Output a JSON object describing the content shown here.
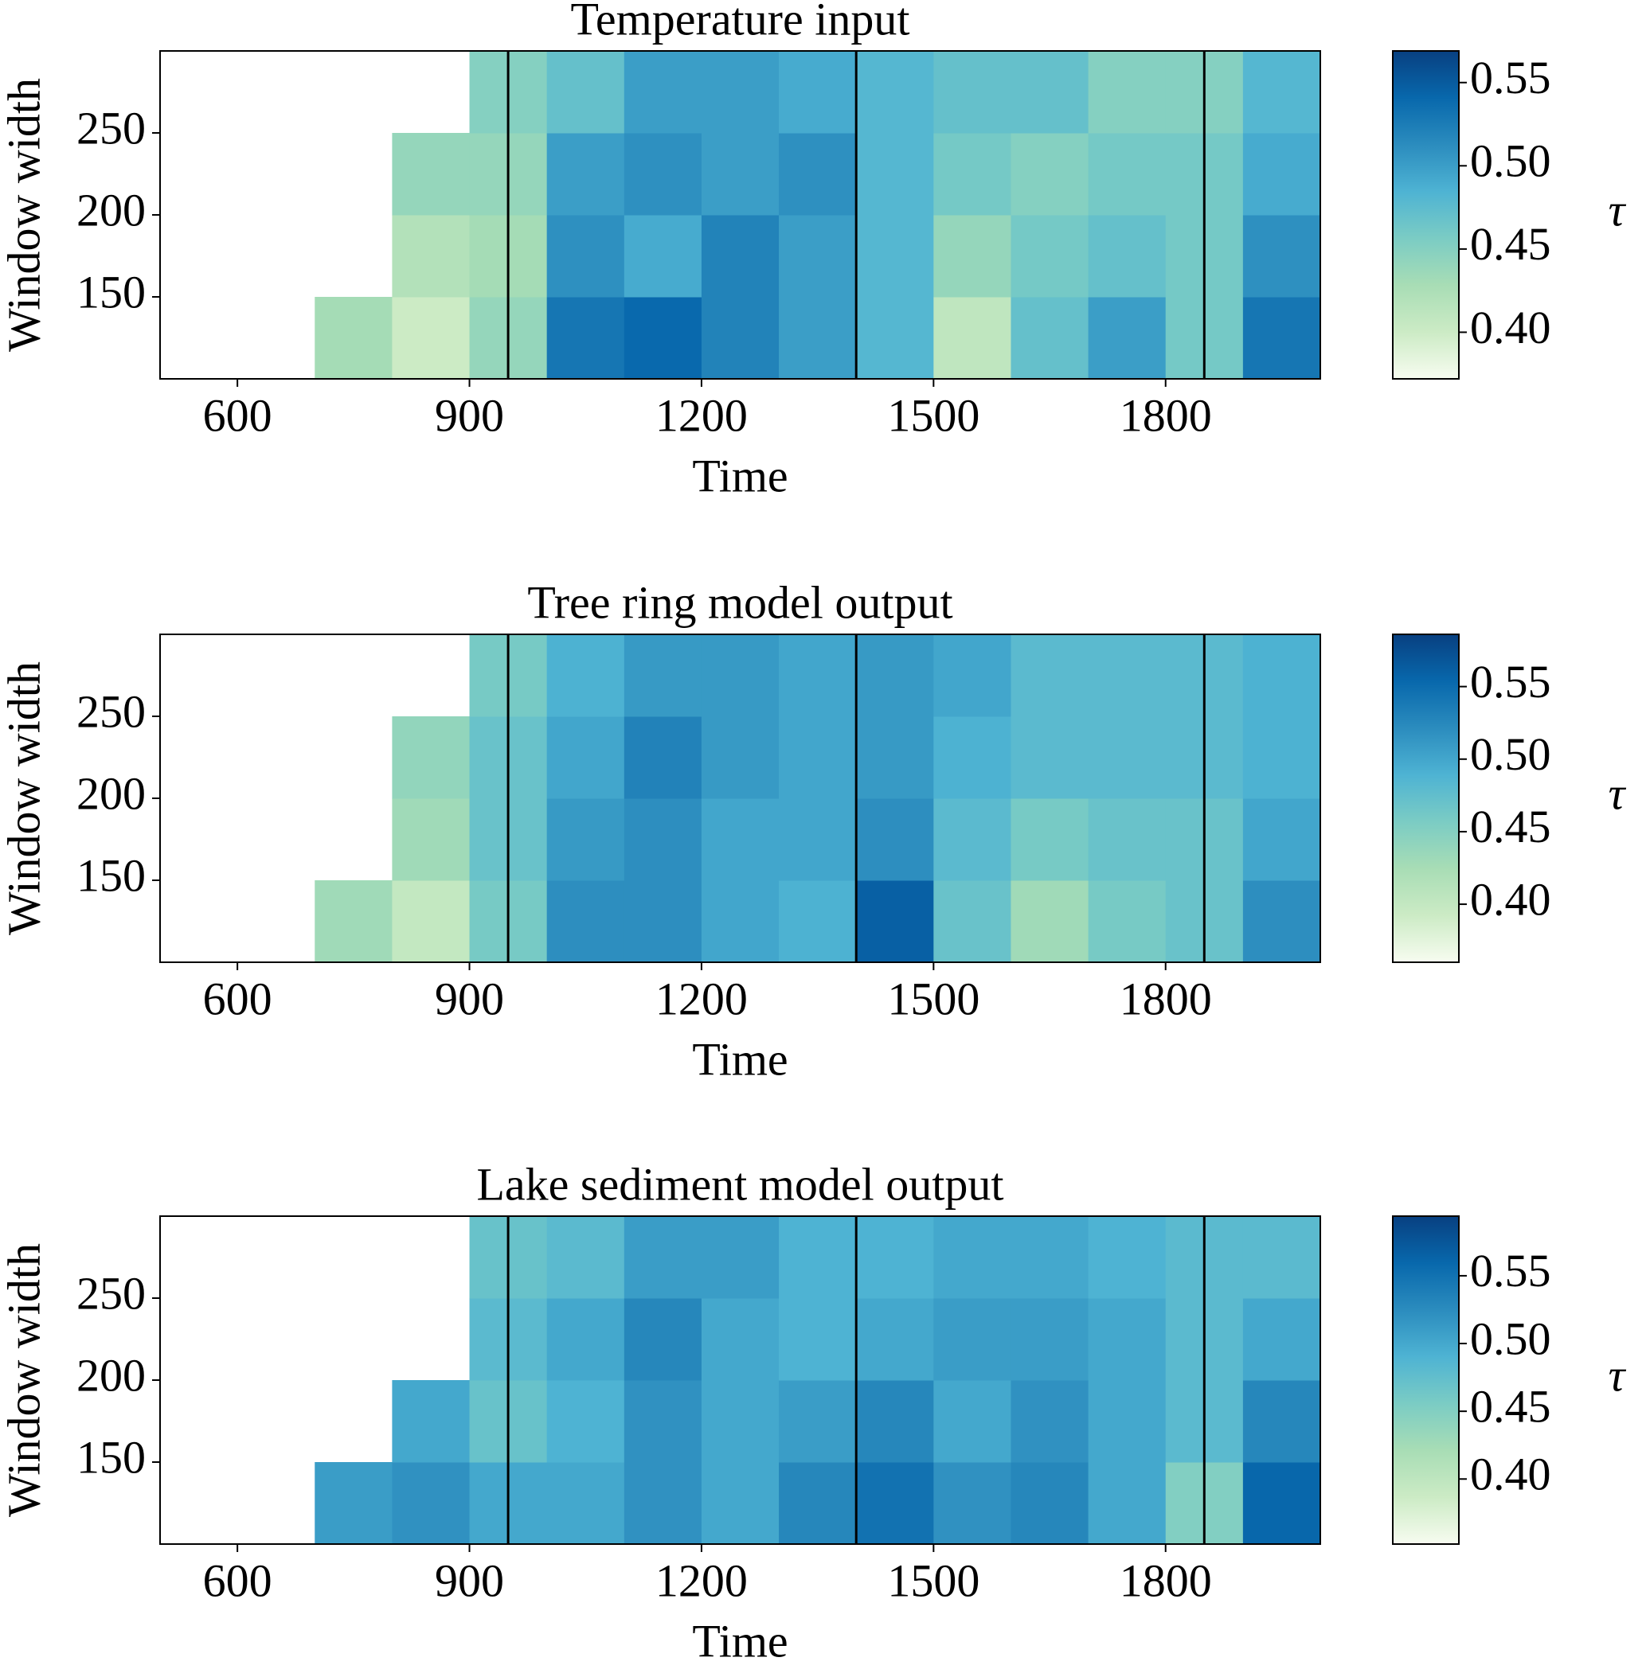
{
  "chart_data": [
    {
      "type": "heatmap",
      "title": "Temperature input",
      "xlabel": "Time",
      "ylabel": "Window width",
      "x_bins": [
        500,
        600,
        700,
        800,
        900,
        1000,
        1100,
        1200,
        1300,
        1400,
        1500,
        1600,
        1700,
        1800,
        1900,
        2000
      ],
      "y_bins": [
        100,
        150,
        200,
        250,
        300
      ],
      "values": [
        [
          null,
          null,
          0.43,
          0.4,
          0.44,
          0.53,
          0.54,
          0.52,
          0.5,
          0.48,
          0.41,
          0.47,
          0.5,
          0.46,
          0.53
        ],
        [
          null,
          null,
          null,
          0.42,
          0.43,
          0.51,
          0.49,
          0.52,
          0.5,
          0.48,
          0.44,
          0.46,
          0.47,
          0.46,
          0.51
        ],
        [
          null,
          null,
          null,
          0.44,
          0.44,
          0.5,
          0.51,
          0.5,
          0.51,
          0.48,
          0.46,
          0.45,
          0.46,
          0.46,
          0.49
        ],
        [
          null,
          null,
          null,
          null,
          0.45,
          0.47,
          0.5,
          0.5,
          0.49,
          0.48,
          0.47,
          0.47,
          0.45,
          0.45,
          0.48
        ]
      ],
      "xlim": [
        500,
        2000
      ],
      "ylim": [
        100,
        300
      ],
      "xticks": [
        600,
        900,
        1200,
        1500,
        1800
      ],
      "yticks": [
        150,
        200,
        250
      ],
      "vlines": [
        950,
        1400,
        1850
      ],
      "colorbar": {
        "label": "τ",
        "lim": [
          0.372,
          0.569
        ],
        "ticks": [
          {
            "value": 0.4,
            "label": "0.40"
          },
          0.45,
          {
            "value": 0.5,
            "label": "0.50"
          },
          0.55
        ]
      },
      "colormap": [
        "#f7fcf0",
        "#ccebc5",
        "#a8ddb5",
        "#7bccc4",
        "#4eb3d3",
        "#2b8cbe",
        "#0868ac",
        "#084081"
      ]
    },
    {
      "type": "heatmap",
      "title": "Tree ring model output",
      "xlabel": "Time",
      "ylabel": "Window width",
      "x_bins": [
        500,
        600,
        700,
        800,
        900,
        1000,
        1100,
        1200,
        1300,
        1400,
        1500,
        1600,
        1700,
        1800,
        1900,
        2000
      ],
      "y_bins": [
        100,
        150,
        200,
        250,
        300
      ],
      "values": [
        [
          null,
          null,
          0.43,
          0.4,
          0.46,
          0.52,
          0.52,
          0.5,
          0.49,
          0.56,
          0.47,
          0.43,
          0.46,
          0.47,
          0.52
        ],
        [
          null,
          null,
          null,
          0.43,
          0.47,
          0.51,
          0.52,
          0.5,
          0.5,
          0.52,
          0.48,
          0.46,
          0.47,
          0.47,
          0.5
        ],
        [
          null,
          null,
          null,
          0.44,
          0.47,
          0.5,
          0.53,
          0.51,
          0.5,
          0.51,
          0.49,
          0.48,
          0.48,
          0.48,
          0.49
        ],
        [
          null,
          null,
          null,
          null,
          0.46,
          0.49,
          0.51,
          0.51,
          0.5,
          0.51,
          0.5,
          0.48,
          0.48,
          0.48,
          0.49
        ]
      ],
      "xlim": [
        500,
        2000
      ],
      "ylim": [
        100,
        300
      ],
      "xticks": [
        600,
        900,
        1200,
        1500,
        1800
      ],
      "yticks": [
        150,
        200,
        250
      ],
      "vlines": [
        950,
        1400,
        1850
      ],
      "colorbar": {
        "label": "τ",
        "lim": [
          0.36,
          0.586
        ],
        "ticks": [
          {
            "value": 0.4,
            "label": "0.40"
          },
          0.45,
          {
            "value": 0.5,
            "label": "0.50"
          },
          0.55
        ]
      },
      "colormap": [
        "#f7fcf0",
        "#ccebc5",
        "#a8ddb5",
        "#7bccc4",
        "#4eb3d3",
        "#2b8cbe",
        "#0868ac",
        "#084081"
      ]
    },
    {
      "type": "heatmap",
      "title": "Lake sediment model output",
      "xlabel": "Time",
      "ylabel": "Window width",
      "x_bins": [
        500,
        600,
        700,
        800,
        900,
        1000,
        1100,
        1200,
        1300,
        1400,
        1500,
        1600,
        1700,
        1800,
        1900,
        2000
      ],
      "y_bins": [
        100,
        150,
        200,
        250,
        300
      ],
      "values": [
        [
          null,
          null,
          0.51,
          0.52,
          0.5,
          0.5,
          0.52,
          0.5,
          0.53,
          0.55,
          0.52,
          0.53,
          0.5,
          0.45,
          0.56
        ],
        [
          null,
          null,
          null,
          0.5,
          0.47,
          0.49,
          0.52,
          0.5,
          0.51,
          0.53,
          0.5,
          0.52,
          0.5,
          0.48,
          0.53
        ],
        [
          null,
          null,
          null,
          null,
          0.48,
          0.5,
          0.53,
          0.5,
          0.49,
          0.5,
          0.51,
          0.51,
          0.5,
          0.48,
          0.5
        ],
        [
          null,
          null,
          null,
          null,
          0.47,
          0.48,
          0.51,
          0.51,
          0.49,
          0.49,
          0.5,
          0.5,
          0.49,
          0.48,
          0.48
        ]
      ],
      "xlim": [
        500,
        2000
      ],
      "ylim": [
        100,
        300
      ],
      "xticks": [
        600,
        900,
        1200,
        1500,
        1800
      ],
      "yticks": [
        150,
        200,
        250
      ],
      "vlines": [
        950,
        1400,
        1850
      ],
      "colorbar": {
        "label": "τ",
        "lim": [
          0.352,
          0.594
        ],
        "ticks": [
          {
            "value": 0.4,
            "label": "0.40"
          },
          0.45,
          {
            "value": 0.5,
            "label": "0.50"
          },
          0.55
        ]
      },
      "colormap": [
        "#f7fcf0",
        "#ccebc5",
        "#a8ddb5",
        "#7bccc4",
        "#4eb3d3",
        "#2b8cbe",
        "#0868ac",
        "#084081"
      ]
    }
  ]
}
